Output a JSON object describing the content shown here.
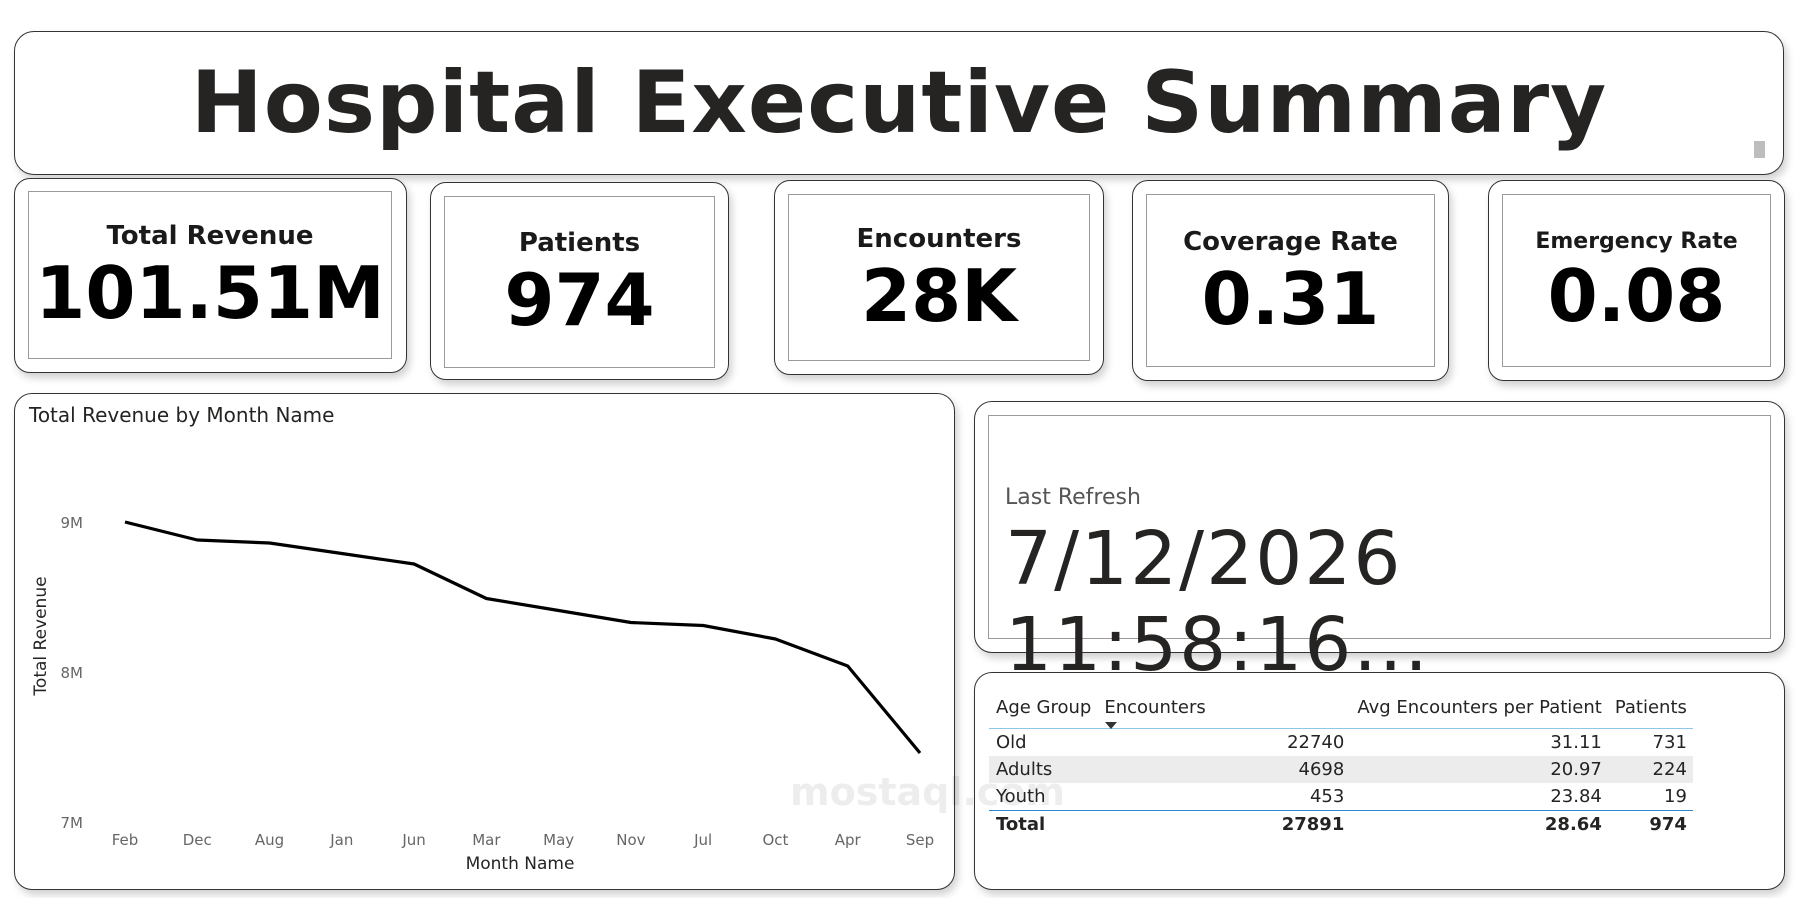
{
  "header": {
    "title": "Hospital Executive Summary"
  },
  "kpis": [
    {
      "label": "Total Revenue",
      "value": "101.51M"
    },
    {
      "label": "Patients",
      "value": "974"
    },
    {
      "label": "Encounters",
      "value": "28K"
    },
    {
      "label": "Coverage Rate",
      "value": "0.31"
    },
    {
      "label": "Emergency Rate",
      "value": "0.08"
    }
  ],
  "refresh": {
    "label": "Last Refresh",
    "value": "7/12/2026 11:58:16..."
  },
  "table": {
    "headers": [
      "Age Group",
      "Encounters",
      "Avg Encounters per Patient",
      "Patients"
    ],
    "rows": [
      {
        "age_group": "Old",
        "encounters": "22740",
        "avg": "31.11",
        "patients": "731"
      },
      {
        "age_group": "Adults",
        "encounters": "4698",
        "avg": "20.97",
        "patients": "224"
      },
      {
        "age_group": "Youth",
        "encounters": "453",
        "avg": "23.84",
        "patients": "19"
      }
    ],
    "total": {
      "label": "Total",
      "encounters": "27891",
      "avg": "28.64",
      "patients": "974"
    }
  },
  "watermark": "mostaql.com",
  "chart_data": {
    "type": "line",
    "title": "Total Revenue by Month Name",
    "xlabel": "Month Name",
    "ylabel": "Total Revenue",
    "categories": [
      "Feb",
      "Dec",
      "Aug",
      "Jan",
      "Jun",
      "Mar",
      "May",
      "Nov",
      "Jul",
      "Oct",
      "Apr",
      "Sep"
    ],
    "series": [
      {
        "values": [
          9000000,
          8880000,
          8860000,
          8790000,
          8720000,
          8490000,
          8410000,
          8330000,
          8310000,
          8220000,
          8040000,
          7460000
        ]
      }
    ],
    "ylim": [
      7000000,
      9000000
    ],
    "yticks": [
      {
        "value": 9000000,
        "label": "9M"
      },
      {
        "value": 8000000,
        "label": "8M"
      },
      {
        "value": 7000000,
        "label": "7M"
      }
    ],
    "line_color": "#000000",
    "grid": false
  }
}
